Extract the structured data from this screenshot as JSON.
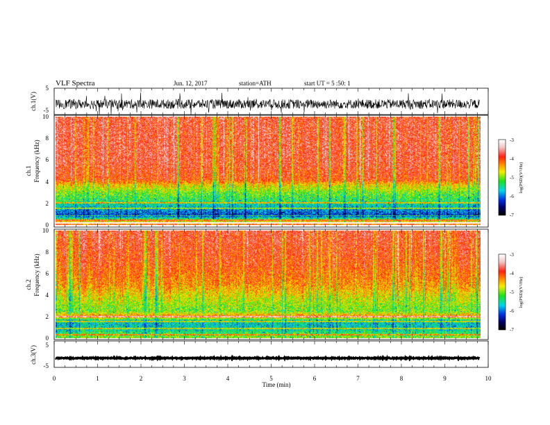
{
  "header": {
    "title": "VLF  Spectra",
    "date": "Jun. 12, 2017",
    "station": "station=ATH",
    "start_ut": "start  UT  =    5  :50: 1"
  },
  "colors": {
    "white": "#ffffff",
    "pink": "#f2c6c6",
    "red": "#ff2010",
    "orange": "#ff8a00",
    "yellow": "#f5ee00",
    "green": "#20e020",
    "cyan": "#00d8e8",
    "blue": "#0030e0",
    "navy": "#000066",
    "black": "#000000"
  },
  "chart_data": {
    "type": "heatmap",
    "xlabel": "Time  (min)",
    "xlim": [
      0,
      10
    ],
    "x_ticks": [
      "0",
      "1",
      "2",
      "3",
      "4",
      "5",
      "6",
      "7",
      "8",
      "9",
      "10"
    ],
    "data_end_min": 9.8,
    "ch1_waveform": {
      "ylabel": "ch.1(V)",
      "ylim": [
        -5,
        5
      ],
      "y_ticks": [
        "5",
        "-5"
      ],
      "mean_v": -1.0,
      "amplitude_v": 1.8
    },
    "ch3_waveform": {
      "ylabel": "ch.3(V)",
      "ylim": [
        -5,
        5
      ],
      "y_ticks": [
        "5",
        "-5"
      ],
      "mean_v": -1.5,
      "amplitude_v": 0.2
    },
    "ch1_spectrogram": {
      "ylabel_top": "ch.1",
      "ylabel": "Frequency  (kHz)",
      "ylim_khz": [
        0,
        10
      ],
      "y_ticks": [
        "10",
        "8",
        "6",
        "4",
        "2",
        "0"
      ],
      "band_profile": [
        {
          "f_khz": 0.0,
          "log_psd": -4.0
        },
        {
          "f_khz": 0.3,
          "log_psd": -4.4
        },
        {
          "f_khz": 0.9,
          "log_psd": -6.2
        },
        {
          "f_khz": 1.5,
          "log_psd": -5.8
        },
        {
          "f_khz": 2.2,
          "log_psd": -5.3
        },
        {
          "f_khz": 3.0,
          "log_psd": -5.0
        },
        {
          "f_khz": 3.7,
          "log_psd": -4.6
        },
        {
          "f_khz": 4.2,
          "log_psd": -4.0
        },
        {
          "f_khz": 6.0,
          "log_psd": -3.8
        },
        {
          "f_khz": 10.0,
          "log_psd": -3.8
        }
      ],
      "gap_khz": [
        0.0,
        0.3
      ],
      "lines_khz": [
        0.5,
        0.9,
        1.55,
        2.1
      ]
    },
    "ch2_spectrogram": {
      "ylabel_top": "ch.2",
      "ylabel": "Frequency  (kHz)",
      "ylim_khz": [
        0,
        10
      ],
      "y_ticks": [
        "10",
        "8",
        "6",
        "4",
        "2",
        "0"
      ],
      "band_profile": [
        {
          "f_khz": 0.0,
          "log_psd": -4.9
        },
        {
          "f_khz": 0.9,
          "log_psd": -5.6
        },
        {
          "f_khz": 1.6,
          "log_psd": -5.6
        },
        {
          "f_khz": 2.0,
          "log_psd": -4.2
        },
        {
          "f_khz": 2.5,
          "log_psd": -5.0
        },
        {
          "f_khz": 3.5,
          "log_psd": -4.8
        },
        {
          "f_khz": 5.0,
          "log_psd": -4.3
        },
        {
          "f_khz": 7.0,
          "log_psd": -4.0
        },
        {
          "f_khz": 10.0,
          "log_psd": -3.8
        }
      ],
      "lines_khz": [
        0.3,
        0.9,
        1.5,
        2.0
      ]
    },
    "colorbar": {
      "label": "log(PSD)(V²/Hz)",
      "range": [
        -7,
        -3
      ],
      "ticks": [
        "-3",
        "-4",
        "-5",
        "-6",
        "-7"
      ]
    },
    "grid": false,
    "legend": "none"
  }
}
